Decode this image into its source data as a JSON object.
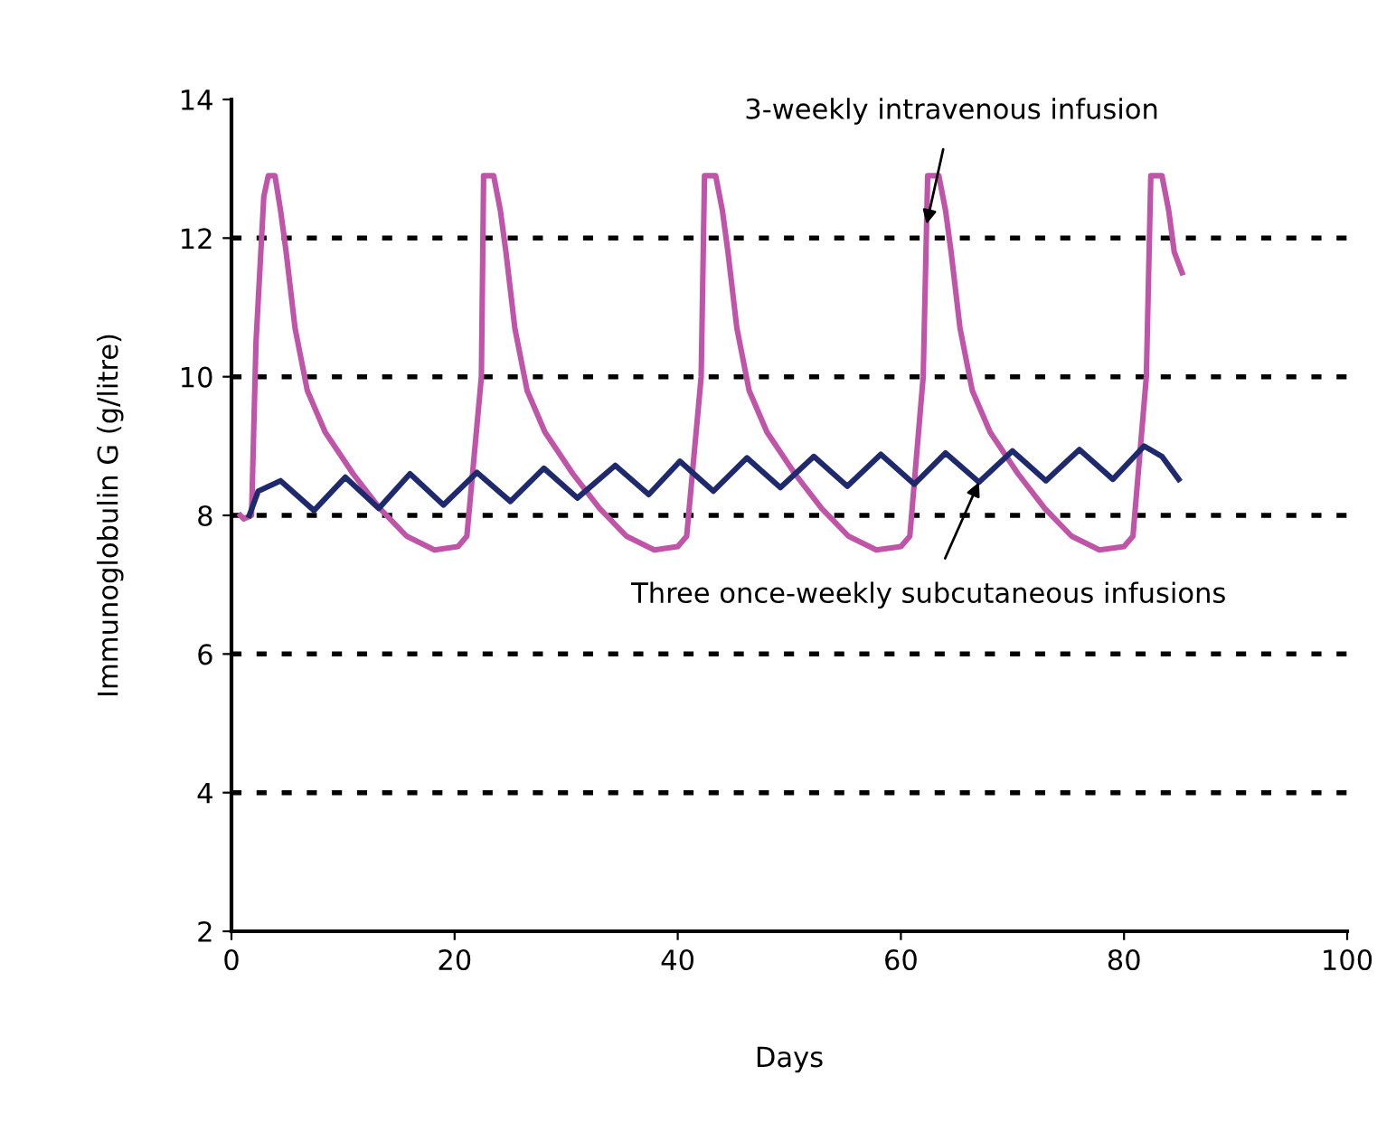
{
  "chart_data": {
    "type": "line",
    "xlabel": "Days",
    "ylabel": "Immunoglobulin G (g/litre)",
    "xlim": [
      0,
      100
    ],
    "xticks": [
      0,
      20,
      40,
      60,
      80,
      100
    ],
    "ylim": [
      2,
      14
    ],
    "yticks": [
      2,
      4,
      6,
      8,
      10,
      12,
      14
    ],
    "legend": false,
    "marker": "none",
    "line_style": "solid",
    "series": [
      {
        "color": "#c054a8",
        "x": [
          0.8,
          1.1,
          1.8,
          2.2,
          2.9,
          3.3,
          3.9,
          4.4,
          4.9,
          5.7,
          6.8,
          8.4,
          10.9,
          13.3,
          15.7,
          18.2,
          20.3,
          21.1,
          22.4,
          22.6,
          22.9,
          23.5,
          24.1,
          24.6,
          25.4,
          26.5,
          28.1,
          30.6,
          33,
          35.4,
          37.9,
          40,
          40.8,
          42.1,
          42.4,
          42.7,
          43.4,
          44,
          44.5,
          45.3,
          46.4,
          48,
          50.5,
          52.9,
          55.3,
          57.8,
          60,
          60.8,
          62,
          62.4,
          62.8,
          63.4,
          64,
          64.5,
          65.3,
          66.4,
          68,
          70.5,
          72.9,
          75.3,
          77.8,
          80,
          80.8,
          82,
          82.4,
          82.8,
          83.4,
          84,
          84.5,
          85.2
        ],
        "values": [
          8.0,
          7.95,
          8.0,
          10.5,
          12.6,
          12.9,
          12.9,
          12.4,
          11.8,
          10.7,
          9.8,
          9.2,
          8.6,
          8.1,
          7.7,
          7.5,
          7.55,
          7.7,
          10.0,
          12.9,
          12.9,
          12.9,
          12.4,
          11.8,
          10.7,
          9.8,
          9.2,
          8.6,
          8.1,
          7.7,
          7.5,
          7.55,
          7.7,
          10.0,
          12.9,
          12.9,
          12.9,
          12.4,
          11.8,
          10.7,
          9.8,
          9.2,
          8.6,
          8.1,
          7.7,
          7.5,
          7.55,
          7.7,
          10.0,
          12.9,
          12.9,
          12.9,
          12.4,
          11.8,
          10.7,
          9.8,
          9.2,
          8.6,
          8.1,
          7.7,
          7.5,
          7.55,
          7.7,
          10.0,
          12.9,
          12.9,
          12.9,
          12.4,
          11.8,
          11.5
        ]
      },
      {
        "color": "#1f2a6e",
        "x": [
          1.6,
          2.4,
          4.4,
          7.4,
          10.2,
          13.2,
          16,
          19,
          22,
          25,
          28,
          31,
          34.4,
          37.4,
          40.2,
          43.2,
          46.2,
          49.2,
          52.2,
          55.2,
          58.2,
          61.2,
          64,
          67,
          70,
          73,
          76,
          79,
          81.8,
          83.4,
          84.9
        ],
        "values": [
          8.0,
          8.35,
          8.5,
          8.07,
          8.55,
          8.1,
          8.6,
          8.15,
          8.62,
          8.2,
          8.68,
          8.25,
          8.72,
          8.3,
          8.78,
          8.35,
          8.83,
          8.4,
          8.85,
          8.42,
          8.88,
          8.45,
          8.9,
          8.48,
          8.93,
          8.5,
          8.95,
          8.52,
          9.0,
          8.85,
          8.52
        ]
      }
    ],
    "ref_lines": [
      {
        "axis": "y",
        "value": 4,
        "line_style": "dotted",
        "color": "#000000"
      },
      {
        "axis": "y",
        "value": 6,
        "line_style": "dotted",
        "color": "#000000"
      },
      {
        "axis": "y",
        "value": 8,
        "line_style": "dotted",
        "color": "#000000"
      },
      {
        "axis": "y",
        "value": 10,
        "line_style": "dotted",
        "color": "#000000"
      },
      {
        "axis": "y",
        "value": 12,
        "line_style": "dotted",
        "color": "#000000"
      }
    ],
    "annotations": [
      {
        "text": "3-weekly intravenous infusion",
        "x": 62.3,
        "y": 12.2
      },
      {
        "text": "Three once-weekly subcutaneous infusions",
        "x": 67,
        "y": 8.48
      }
    ]
  }
}
